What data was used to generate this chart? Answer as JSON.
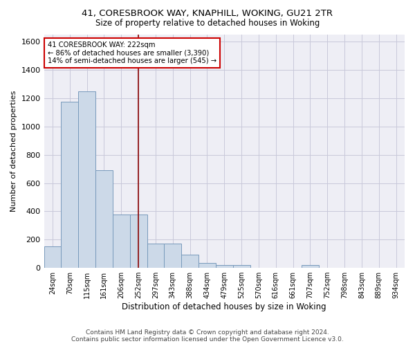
{
  "title_line1": "41, CORESBROOK WAY, KNAPHILL, WOKING, GU21 2TR",
  "title_line2": "Size of property relative to detached houses in Woking",
  "xlabel": "Distribution of detached houses by size in Woking",
  "ylabel": "Number of detached properties",
  "footer_line1": "Contains HM Land Registry data © Crown copyright and database right 2024.",
  "footer_line2": "Contains public sector information licensed under the Open Government Licence v3.0.",
  "categories": [
    "24sqm",
    "70sqm",
    "115sqm",
    "161sqm",
    "206sqm",
    "252sqm",
    "297sqm",
    "343sqm",
    "388sqm",
    "434sqm",
    "479sqm",
    "525sqm",
    "570sqm",
    "616sqm",
    "661sqm",
    "707sqm",
    "752sqm",
    "798sqm",
    "843sqm",
    "889sqm",
    "934sqm"
  ],
  "values": [
    150,
    1175,
    1250,
    690,
    375,
    375,
    170,
    170,
    93,
    35,
    22,
    22,
    0,
    0,
    0,
    18,
    0,
    0,
    0,
    0,
    0
  ],
  "bar_color": "#ccd9e8",
  "bar_edge_color": "#7799bb",
  "grid_color": "#c8c8da",
  "pct_smaller": 86,
  "count_smaller": 3390,
  "pct_larger_semi": 14,
  "count_larger_semi": 545,
  "vline_x": 5.0,
  "ylim": [
    0,
    1650
  ],
  "yticks": [
    0,
    200,
    400,
    600,
    800,
    1000,
    1200,
    1400,
    1600
  ],
  "annotation_box_color": "#cc0000",
  "vline_color": "#880000",
  "bg_color": "#eeeef5"
}
